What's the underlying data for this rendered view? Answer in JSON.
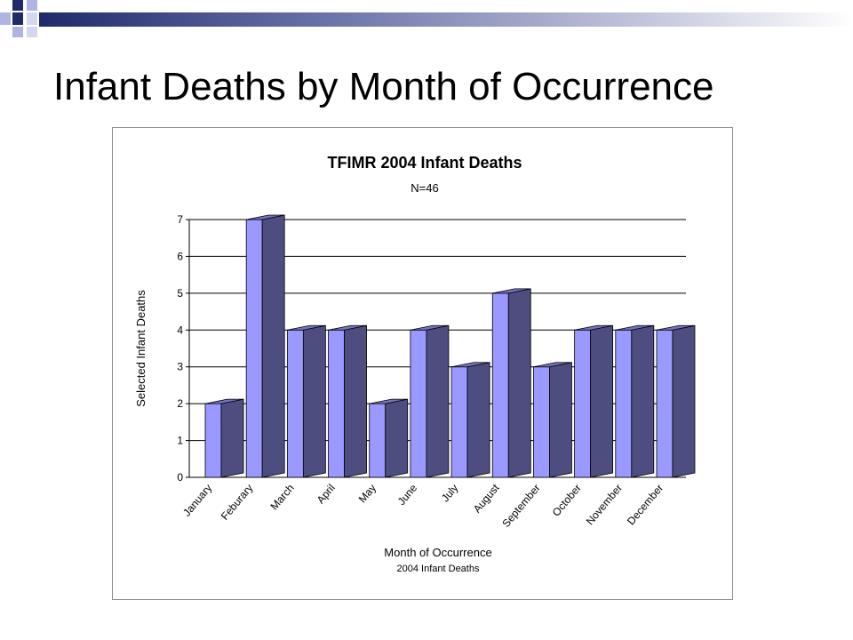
{
  "slide": {
    "title": "Infant Deaths by Month of Occurrence"
  },
  "chart_data": {
    "type": "bar",
    "style": "3d-column",
    "title": "TFIMR 2004 Infant Deaths",
    "subtitle": "N=46",
    "categories": [
      "January",
      "Feburary",
      "March",
      "April",
      "May",
      "June",
      "July",
      "August",
      "September",
      "October",
      "November",
      "December"
    ],
    "series": [
      {
        "values": [
          2,
          7,
          4,
          4,
          2,
          4,
          3,
          5,
          3,
          4,
          4,
          4
        ]
      }
    ],
    "xlabel": "Month of Occurrence",
    "xlabel_sub": "2004 Infant Deaths",
    "ylabel": "Selected Infant Deaths",
    "ylim": [
      0,
      7
    ],
    "yticks": [
      0,
      1,
      2,
      3,
      4,
      5,
      6,
      7
    ],
    "grid": true,
    "legend": "none",
    "colors": {
      "bar_front": "#9999ff",
      "bar_side": "#4d4d80",
      "bar_top": "#7373c0",
      "gridline": "#000000"
    }
  }
}
